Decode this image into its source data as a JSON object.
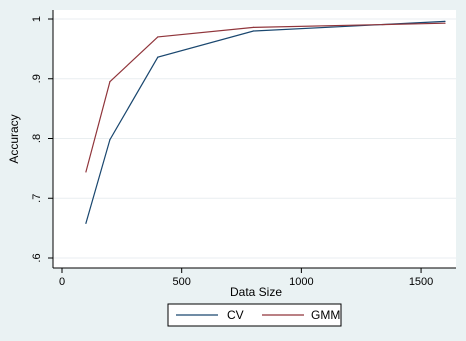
{
  "chart_data": {
    "type": "line",
    "xlabel": "Data Size",
    "ylabel": "Accuracy",
    "xlim": [
      0,
      1600
    ],
    "ylim": [
      0.6,
      1.0
    ],
    "xticks": [
      0,
      500,
      1000,
      1500
    ],
    "xtick_labels": [
      "0",
      "500",
      "1000",
      "1500"
    ],
    "yticks": [
      0.6,
      0.7,
      0.8,
      0.9,
      1.0
    ],
    "ytick_labels": [
      ".6",
      ".7",
      ".8",
      ".9",
      "1"
    ],
    "grid": "horizontal",
    "legend_position": "bottom",
    "series": [
      {
        "name": "CV",
        "color": "#1a476f",
        "x": [
          100,
          200,
          400,
          800,
          1600
        ],
        "y": [
          0.658,
          0.798,
          0.936,
          0.98,
          0.996
        ]
      },
      {
        "name": "GMM",
        "color": "#90353b",
        "x": [
          100,
          200,
          400,
          800,
          1600
        ],
        "y": [
          0.744,
          0.895,
          0.97,
          0.986,
          0.993
        ]
      }
    ]
  }
}
